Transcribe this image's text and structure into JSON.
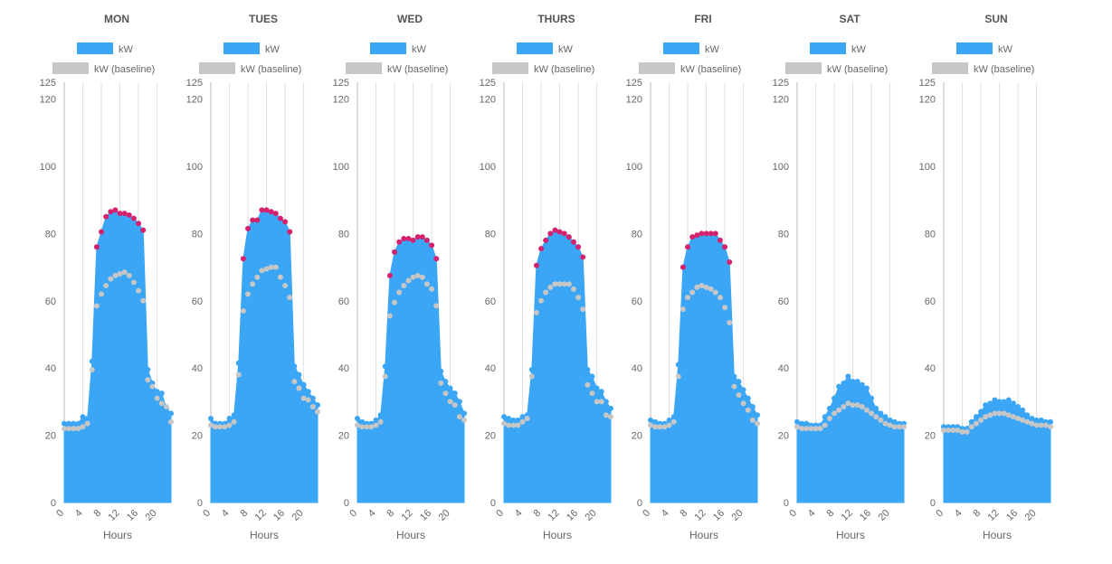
{
  "chart_data": [
    {
      "type": "area",
      "title": "MON",
      "xlabel": "Hours",
      "ylabel": "",
      "xlim": [
        0,
        23
      ],
      "ylim": [
        0,
        125
      ],
      "yticks": [
        0,
        20,
        40,
        60,
        80,
        100,
        120,
        125
      ],
      "xticks": [
        0,
        4,
        8,
        12,
        16,
        20
      ],
      "series": [
        {
          "name": "kW",
          "values": [
            23.5,
            23.5,
            23.5,
            23.5,
            25.5,
            25,
            42,
            76,
            80.5,
            85,
            86.5,
            87,
            86,
            86,
            85.5,
            84.5,
            83,
            81,
            39.5,
            35.5,
            33,
            32.5,
            28,
            26.5
          ]
        },
        {
          "name": "kW (baseline)",
          "values": [
            22,
            22,
            22,
            22,
            22.5,
            23.5,
            39.5,
            58.5,
            62,
            64.5,
            66.5,
            67.5,
            68,
            68.5,
            67.5,
            65.5,
            63,
            60,
            36.5,
            34.5,
            31,
            29.5,
            28.5,
            24
          ]
        }
      ]
    },
    {
      "type": "area",
      "title": "TUES",
      "xlabel": "Hours",
      "ylabel": "",
      "xlim": [
        0,
        23
      ],
      "ylim": [
        0,
        125
      ],
      "yticks": [
        0,
        20,
        40,
        60,
        80,
        100,
        120,
        125
      ],
      "xticks": [
        0,
        4,
        8,
        12,
        16,
        20
      ],
      "series": [
        {
          "name": "kW",
          "values": [
            25,
            23.5,
            23.5,
            23.5,
            25,
            26,
            41.5,
            72.5,
            81.5,
            84,
            84,
            87,
            87,
            86.5,
            86,
            84.5,
            83.5,
            80.5,
            40.5,
            38,
            35,
            33,
            31,
            29
          ]
        },
        {
          "name": "kW (baseline)",
          "values": [
            23,
            22.5,
            22.5,
            22.5,
            23,
            24,
            38,
            57,
            62,
            65,
            67,
            69,
            69.5,
            70,
            70,
            67,
            64.5,
            61,
            36,
            34,
            31,
            30.5,
            28.5,
            27
          ]
        }
      ]
    },
    {
      "type": "area",
      "title": "WED",
      "xlabel": "Hours",
      "ylabel": "",
      "xlim": [
        0,
        23
      ],
      "ylim": [
        0,
        125
      ],
      "yticks": [
        0,
        20,
        40,
        60,
        80,
        100,
        120,
        125
      ],
      "xticks": [
        0,
        4,
        8,
        12,
        16,
        20
      ],
      "series": [
        {
          "name": "kW",
          "values": [
            25,
            24,
            23.5,
            23.5,
            24.5,
            26,
            40.5,
            67.5,
            74.5,
            77.5,
            78.5,
            78.5,
            78,
            79,
            79,
            78,
            76.5,
            72.5,
            39,
            36,
            34,
            32.5,
            30,
            26.5
          ]
        },
        {
          "name": "kW (baseline)",
          "values": [
            23,
            22.5,
            22.5,
            22.5,
            23,
            24,
            37.5,
            55.5,
            59.5,
            62.5,
            64.5,
            66,
            67,
            67.5,
            67,
            65,
            63.5,
            58.5,
            35.5,
            32.5,
            30,
            29,
            25.5,
            24.5
          ]
        }
      ]
    },
    {
      "type": "area",
      "title": "THURS",
      "xlabel": "Hours",
      "ylabel": "",
      "xlim": [
        0,
        23
      ],
      "ylim": [
        0,
        125
      ],
      "yticks": [
        0,
        20,
        40,
        60,
        80,
        100,
        120,
        125
      ],
      "xticks": [
        0,
        4,
        8,
        12,
        16,
        20
      ],
      "series": [
        {
          "name": "kW",
          "values": [
            25.5,
            25,
            24.5,
            24.5,
            25.5,
            26,
            39.5,
            70.5,
            75.5,
            78,
            80,
            81,
            80.5,
            80,
            79,
            77.5,
            76,
            73,
            39.5,
            37.5,
            34,
            33,
            30,
            28
          ]
        },
        {
          "name": "kW (baseline)",
          "values": [
            23.5,
            23,
            23,
            23,
            24,
            25,
            37.5,
            56.5,
            60,
            62.5,
            64,
            65,
            65,
            65,
            65,
            63.5,
            61,
            57.5,
            35,
            32.5,
            30,
            30,
            26,
            25.5
          ]
        }
      ]
    },
    {
      "type": "area",
      "title": "FRI",
      "xlabel": "Hours",
      "ylabel": "",
      "xlim": [
        0,
        23
      ],
      "ylim": [
        0,
        125
      ],
      "yticks": [
        0,
        20,
        40,
        60,
        80,
        100,
        120,
        125
      ],
      "xticks": [
        0,
        4,
        8,
        12,
        16,
        20
      ],
      "series": [
        {
          "name": "kW",
          "values": [
            24.5,
            24,
            23.5,
            23.5,
            24.5,
            25.5,
            41,
            70,
            76,
            79,
            79.5,
            80,
            80,
            80,
            80,
            78,
            76,
            71.5,
            37.5,
            36,
            33.5,
            31,
            28.5,
            26
          ]
        },
        {
          "name": "kW (baseline)",
          "values": [
            23,
            22.5,
            22.5,
            22.5,
            23,
            24,
            37.5,
            57.5,
            61,
            62.5,
            64,
            64.5,
            64,
            63.5,
            62.5,
            61,
            58,
            53.5,
            34.5,
            32,
            29.5,
            27.5,
            24.5,
            23.5
          ]
        }
      ]
    },
    {
      "type": "area",
      "title": "SAT",
      "xlabel": "Hours",
      "ylabel": "",
      "xlim": [
        0,
        23
      ],
      "ylim": [
        0,
        125
      ],
      "yticks": [
        0,
        20,
        40,
        60,
        80,
        100,
        120,
        125
      ],
      "xticks": [
        0,
        4,
        8,
        12,
        16,
        20
      ],
      "series": [
        {
          "name": "kW",
          "values": [
            24,
            23.5,
            23.5,
            23,
            23,
            23,
            25.5,
            28,
            31,
            34.5,
            35.5,
            37.5,
            36,
            36,
            35,
            34,
            31,
            28,
            26.5,
            25.5,
            24.5,
            24,
            23.5,
            23.5
          ]
        },
        {
          "name": "kW (baseline)",
          "values": [
            22.5,
            22,
            22,
            22,
            22,
            22,
            23,
            25,
            26.5,
            27.5,
            28.5,
            29.5,
            29,
            29,
            28.5,
            27.5,
            26.5,
            25.5,
            24.5,
            23.5,
            23,
            22.5,
            22.5,
            22.5
          ]
        }
      ]
    },
    {
      "type": "area",
      "title": "SUN",
      "xlabel": "Hours",
      "ylabel": "",
      "xlim": [
        0,
        23
      ],
      "ylim": [
        0,
        125
      ],
      "yticks": [
        0,
        20,
        40,
        60,
        80,
        100,
        120,
        125
      ],
      "xticks": [
        0,
        4,
        8,
        12,
        16,
        20
      ],
      "series": [
        {
          "name": "kW",
          "values": [
            22.5,
            22.5,
            22.5,
            22.5,
            22,
            22,
            24,
            25.5,
            27,
            29,
            29.5,
            30.5,
            30,
            30,
            30.5,
            29.5,
            28.5,
            27.5,
            26,
            25,
            24.5,
            24.5,
            24,
            24
          ]
        },
        {
          "name": "kW (baseline)",
          "values": [
            21.5,
            21.5,
            21.5,
            21.5,
            21,
            21,
            22.5,
            23.5,
            24.5,
            25.5,
            26,
            26.5,
            26.5,
            26.5,
            26,
            25.5,
            25,
            24.5,
            24,
            23.5,
            23,
            23,
            23,
            22.5
          ]
        }
      ]
    }
  ],
  "legend": {
    "kw_label": "kW",
    "baseline_label": "kW (baseline)"
  },
  "colors": {
    "kw": "#3aa6f5",
    "baseline": "#c6c6c6",
    "exceed": "#d4226f",
    "grid": "#e0e0e0",
    "axis": "#bbbbbb",
    "text": "#666666",
    "title": "#555555"
  }
}
